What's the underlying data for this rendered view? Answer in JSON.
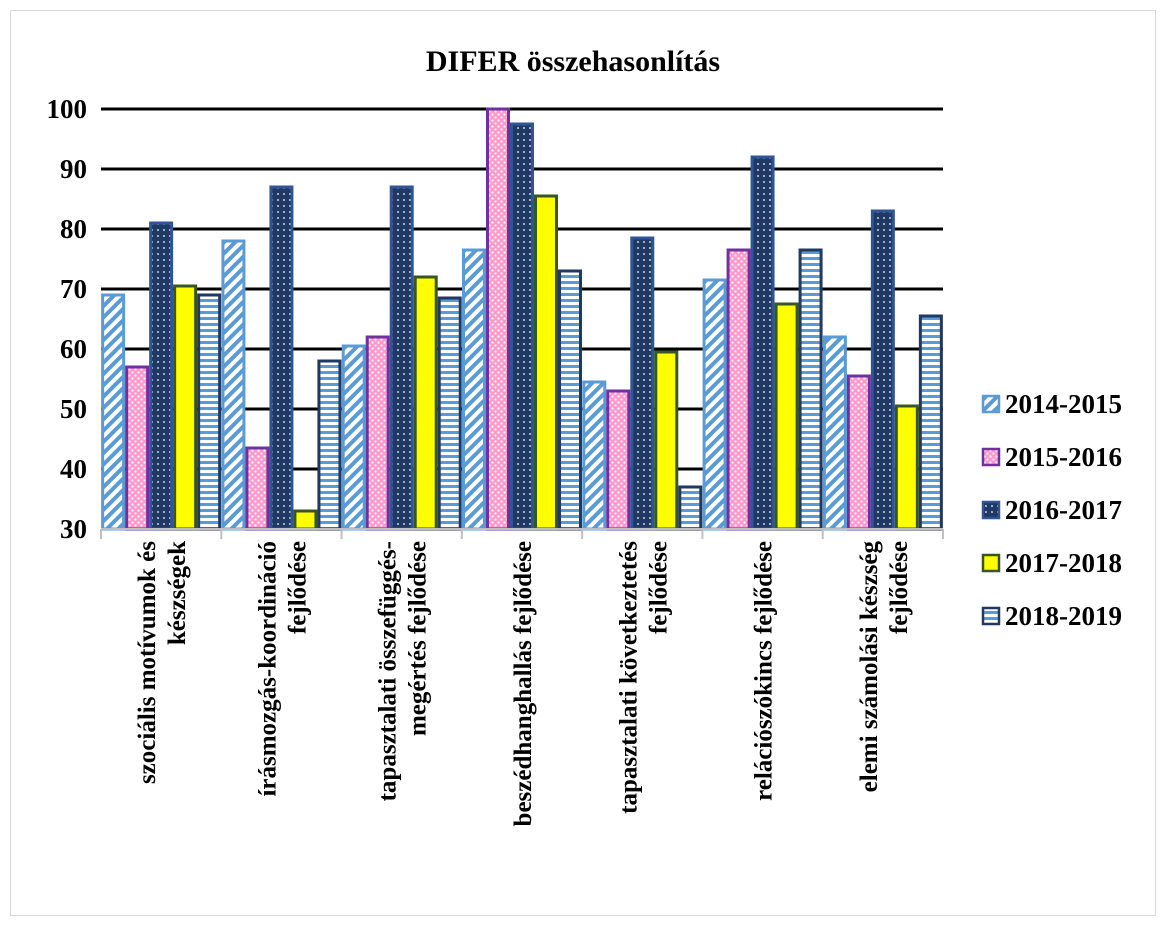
{
  "chart_data": {
    "type": "bar",
    "title": "DIFER összehasonlítás",
    "xlabel": "",
    "ylabel": "",
    "ylim": [
      30,
      100
    ],
    "yticks": [
      30,
      40,
      50,
      60,
      70,
      80,
      90,
      100
    ],
    "grid": true,
    "legend_position": "right",
    "categories": [
      [
        "szociális motívumok és",
        "készségek"
      ],
      [
        "írásmozgás-koordináció",
        "fejlődése"
      ],
      [
        "tapasztalati összefüggés-",
        "megértés fejlődése"
      ],
      [
        "beszédhanghallás fejlődése"
      ],
      [
        "tapasztalati következtetés",
        "fejlődése"
      ],
      [
        "relációszókincs fejlődése"
      ],
      [
        "elemi számolási készség",
        "fejlődése"
      ]
    ],
    "series": [
      {
        "name": "2014-2015",
        "color": "#5b9bd5",
        "pattern": "diagonal-stripes",
        "values": [
          69,
          78,
          60.5,
          76.5,
          54.5,
          71.5,
          62
        ]
      },
      {
        "name": "2015-2016",
        "color": "#7030a0",
        "pattern": "pink-dots",
        "values": [
          57,
          43.5,
          62,
          100,
          53,
          76.5,
          55.5
        ]
      },
      {
        "name": "2016-2017",
        "color": "#2f5597",
        "pattern": "dark-dotted",
        "values": [
          81,
          87,
          87,
          97.5,
          78.5,
          92,
          83
        ]
      },
      {
        "name": "2017-2018",
        "color": "#375623",
        "pattern": "yellow-solid",
        "values": [
          70.5,
          33,
          72,
          85.5,
          59.5,
          67.5,
          50.5
        ]
      },
      {
        "name": "2018-2019",
        "color": "#1f3864",
        "pattern": "horizontal-stripes",
        "values": [
          69,
          58,
          68.5,
          73,
          37,
          76.5,
          65.5
        ]
      }
    ]
  }
}
